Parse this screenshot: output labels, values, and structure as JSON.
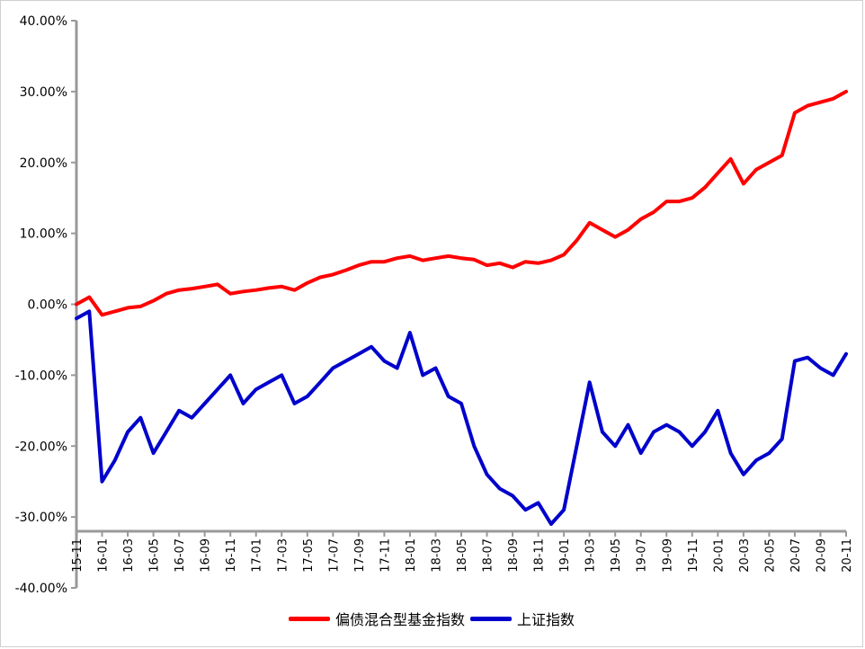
{
  "chart_data": {
    "type": "line",
    "ylim": [
      -40,
      40
    ],
    "y_ticks": [
      "40.00%",
      "30.00%",
      "20.00%",
      "10.00%",
      "0.00%",
      "-10.00%",
      "-20.00%",
      "-30.00%",
      "-40.00%"
    ],
    "y_tick_values": [
      40,
      30,
      20,
      10,
      0,
      -10,
      -20,
      -30,
      -40
    ],
    "x_ticks": [
      "15-11",
      "16-01",
      "16-03",
      "16-05",
      "16-07",
      "16-09",
      "16-11",
      "17-01",
      "17-03",
      "17-05",
      "17-07",
      "17-09",
      "17-11",
      "18-01",
      "18-03",
      "18-05",
      "18-07",
      "18-09",
      "18-11",
      "19-01",
      "19-03",
      "19-05",
      "19-07",
      "19-09",
      "19-11",
      "20-01",
      "20-03",
      "20-05",
      "20-07",
      "20-09",
      "20-11"
    ],
    "grid": false,
    "legend_position": "bottom",
    "series": [
      {
        "name": "偏债混合型基金指数",
        "color": "#ff0000",
        "x": [
          "15-11",
          "15-12",
          "16-01",
          "16-02",
          "16-03",
          "16-04",
          "16-05",
          "16-06",
          "16-07",
          "16-08",
          "16-09",
          "16-10",
          "16-11",
          "16-12",
          "17-01",
          "17-02",
          "17-03",
          "17-04",
          "17-05",
          "17-06",
          "17-07",
          "17-08",
          "17-09",
          "17-10",
          "17-11",
          "17-12",
          "18-01",
          "18-02",
          "18-03",
          "18-04",
          "18-05",
          "18-06",
          "18-07",
          "18-08",
          "18-09",
          "18-10",
          "18-11",
          "18-12",
          "19-01",
          "19-02",
          "19-03",
          "19-04",
          "19-05",
          "19-06",
          "19-07",
          "19-08",
          "19-09",
          "19-10",
          "19-11",
          "19-12",
          "20-01",
          "20-02",
          "20-03",
          "20-04",
          "20-05",
          "20-06",
          "20-07",
          "20-08",
          "20-09",
          "20-10",
          "20-11"
        ],
        "values": [
          0.0,
          1.0,
          -1.5,
          -1.0,
          -0.5,
          -0.3,
          0.5,
          1.5,
          2.0,
          2.2,
          2.5,
          2.8,
          1.5,
          1.8,
          2.0,
          2.3,
          2.5,
          2.0,
          3.0,
          3.8,
          4.2,
          4.8,
          5.5,
          6.0,
          6.0,
          6.5,
          6.8,
          6.2,
          6.5,
          6.8,
          6.5,
          6.3,
          5.5,
          5.8,
          5.2,
          6.0,
          5.8,
          6.2,
          7.0,
          9.0,
          11.5,
          10.5,
          9.5,
          10.5,
          12.0,
          13.0,
          14.5,
          14.5,
          15.0,
          16.5,
          18.5,
          20.5,
          17.0,
          19.0,
          20.0,
          21.0,
          27.0,
          28.0,
          28.5,
          29.0,
          30.0
        ]
      },
      {
        "name": "上证指数",
        "color": "#0000cc",
        "x": [
          "15-11",
          "15-12",
          "16-01",
          "16-02",
          "16-03",
          "16-04",
          "16-05",
          "16-06",
          "16-07",
          "16-08",
          "16-09",
          "16-10",
          "16-11",
          "16-12",
          "17-01",
          "17-02",
          "17-03",
          "17-04",
          "17-05",
          "17-06",
          "17-07",
          "17-08",
          "17-09",
          "17-10",
          "17-11",
          "17-12",
          "18-01",
          "18-02",
          "18-03",
          "18-04",
          "18-05",
          "18-06",
          "18-07",
          "18-08",
          "18-09",
          "18-10",
          "18-11",
          "18-12",
          "19-01",
          "19-02",
          "19-03",
          "19-04",
          "19-05",
          "19-06",
          "19-07",
          "19-08",
          "19-09",
          "19-10",
          "19-11",
          "19-12",
          "20-01",
          "20-02",
          "20-03",
          "20-04",
          "20-05",
          "20-06",
          "20-07",
          "20-08",
          "20-09",
          "20-10",
          "20-11"
        ],
        "values": [
          -2.0,
          -1.0,
          -25.0,
          -22.0,
          -18.0,
          -16.0,
          -21.0,
          -18.0,
          -15.0,
          -16.0,
          -14.0,
          -12.0,
          -10.0,
          -14.0,
          -12.0,
          -11.0,
          -10.0,
          -14.0,
          -13.0,
          -11.0,
          -9.0,
          -8.0,
          -7.0,
          -6.0,
          -8.0,
          -9.0,
          -4.0,
          -10.0,
          -9.0,
          -13.0,
          -14.0,
          -20.0,
          -24.0,
          -26.0,
          -27.0,
          -29.0,
          -28.0,
          -31.0,
          -29.0,
          -20.0,
          -11.0,
          -18.0,
          -20.0,
          -17.0,
          -21.0,
          -18.0,
          -17.0,
          -18.0,
          -20.0,
          -18.0,
          -15.0,
          -21.0,
          -24.0,
          -22.0,
          -21.0,
          -19.0,
          -8.0,
          -7.5,
          -9.0,
          -10.0,
          -7.0
        ]
      }
    ]
  }
}
